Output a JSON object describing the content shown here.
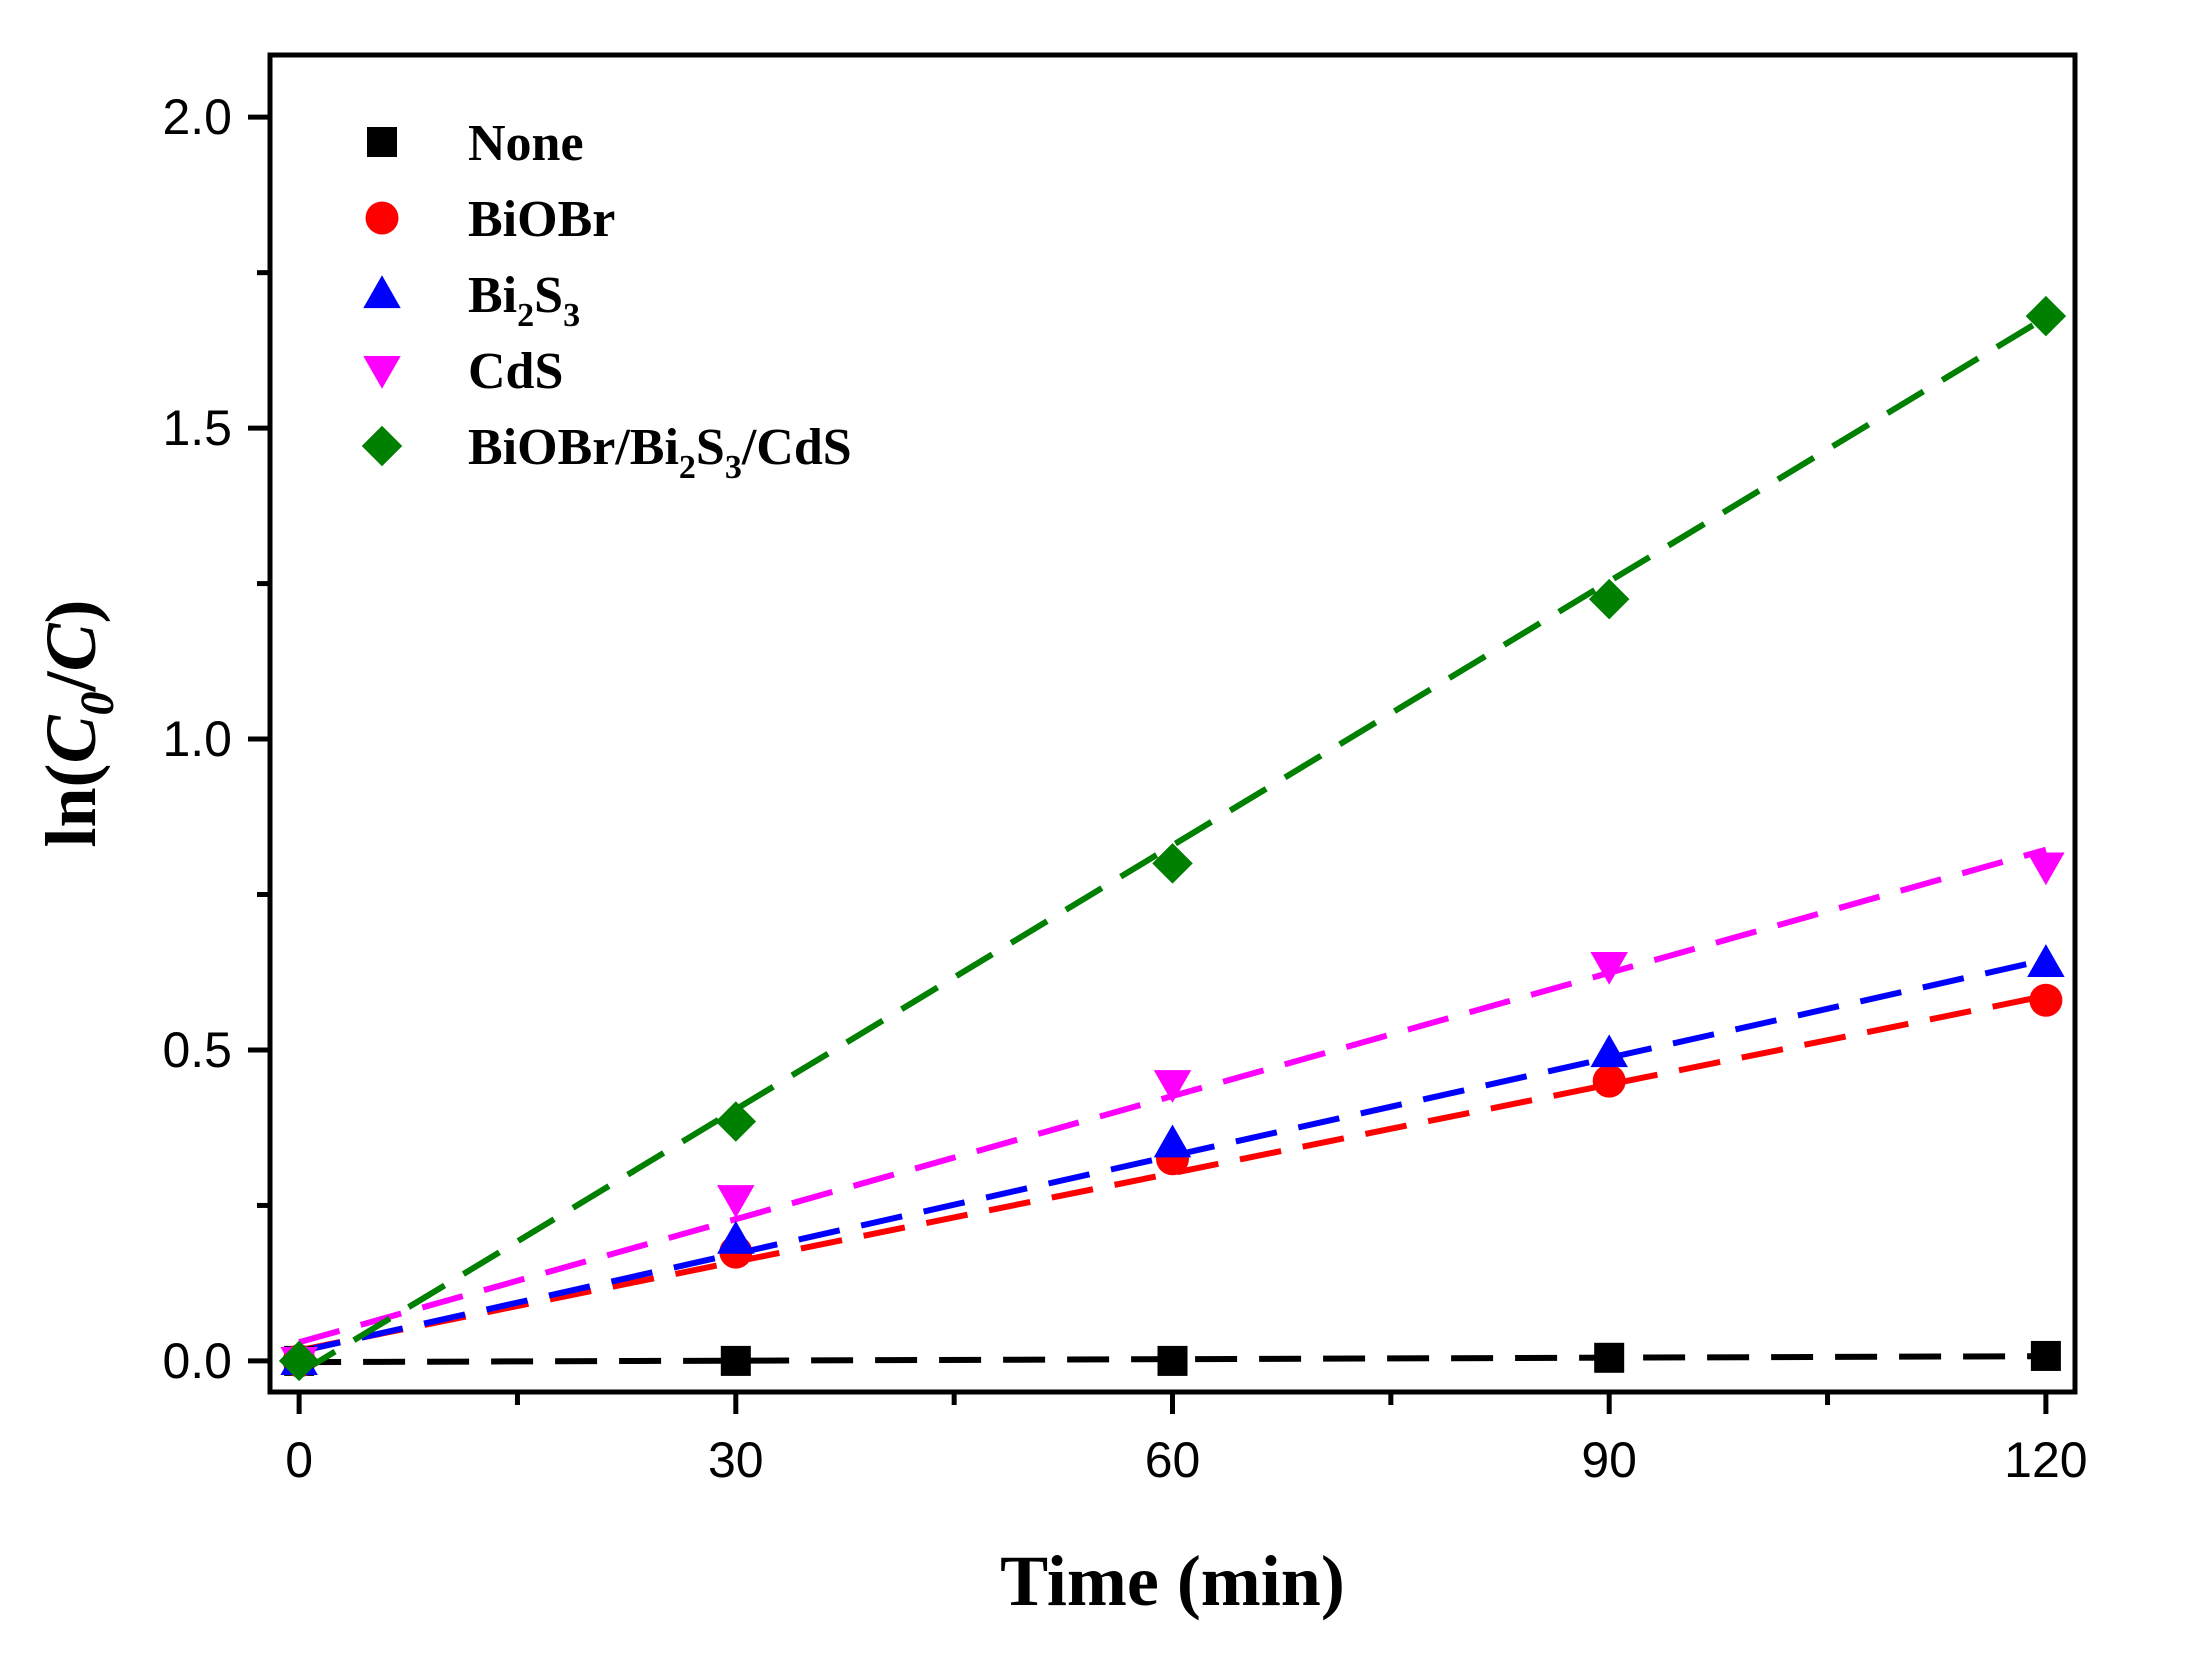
{
  "chart_data": {
    "type": "scatter",
    "title": "",
    "xlabel": "Time (min)",
    "ylabel": "ln(C0/C)",
    "ylabel_parts": {
      "prefix": "ln(",
      "c": "C",
      "sub": "0",
      "sep": "/",
      "c2": "C",
      "suffix": ")"
    },
    "xlim": [
      -2,
      122
    ],
    "ylim": [
      -0.05,
      2.1
    ],
    "x_ticks": [
      0,
      30,
      60,
      90,
      120
    ],
    "x_tick_labels": [
      "0",
      "30",
      "60",
      "90",
      "120"
    ],
    "x_minor_ticks": [
      15,
      45,
      75,
      105
    ],
    "y_ticks": [
      0.0,
      0.5,
      1.0,
      1.5,
      2.0
    ],
    "y_tick_labels": [
      "0.0",
      "0.5",
      "1.0",
      "1.5",
      "2.0"
    ],
    "y_minor_ticks": [
      0.25,
      0.75,
      1.25,
      1.75
    ],
    "grid": false,
    "legend_position": "top-left",
    "x": [
      0,
      30,
      60,
      90,
      120
    ],
    "series": [
      {
        "name": "None",
        "legend_parts": [
          {
            "t": "None"
          }
        ],
        "values": [
          0.0,
          0.0,
          0.0,
          0.005,
          0.008
        ],
        "fit": {
          "intercept": -0.002,
          "slope": 8e-05
        },
        "marker": "square",
        "color": "#000000"
      },
      {
        "name": "BiOBr",
        "legend_parts": [
          {
            "t": "BiOBr"
          }
        ],
        "values": [
          0.0,
          0.175,
          0.325,
          0.45,
          0.58
        ],
        "fit": {
          "intercept": 0.017,
          "slope": 0.00475
        },
        "marker": "circle",
        "color": "#ff0000"
      },
      {
        "name": "Bi2S3",
        "legend_parts": [
          {
            "t": "Bi"
          },
          {
            "t": "2",
            "sub": true
          },
          {
            "t": "S"
          },
          {
            "t": "3",
            "sub": true
          }
        ],
        "values": [
          0.0,
          0.195,
          0.35,
          0.495,
          0.64
        ],
        "fit": {
          "intercept": 0.015,
          "slope": 0.00525
        },
        "marker": "triangle-up",
        "color": "#0000ff"
      },
      {
        "name": "CdS",
        "legend_parts": [
          {
            "t": "CdS"
          }
        ],
        "values": [
          0.0,
          0.26,
          0.445,
          0.635,
          0.795
        ],
        "fit": {
          "intercept": 0.03,
          "slope": 0.0066
        },
        "marker": "triangle-down",
        "color": "#ff00ff"
      },
      {
        "name": "BiOBr/Bi2S3/CdS",
        "legend_parts": [
          {
            "t": "BiOBr/Bi"
          },
          {
            "t": "2",
            "sub": true
          },
          {
            "t": "S"
          },
          {
            "t": "3",
            "sub": true
          },
          {
            "t": "/CdS"
          }
        ],
        "values": [
          0.0,
          0.385,
          0.8,
          1.225,
          1.68
        ],
        "fit": {
          "intercept": -0.02,
          "slope": 0.01415
        },
        "marker": "diamond",
        "color": "#008000"
      }
    ]
  }
}
